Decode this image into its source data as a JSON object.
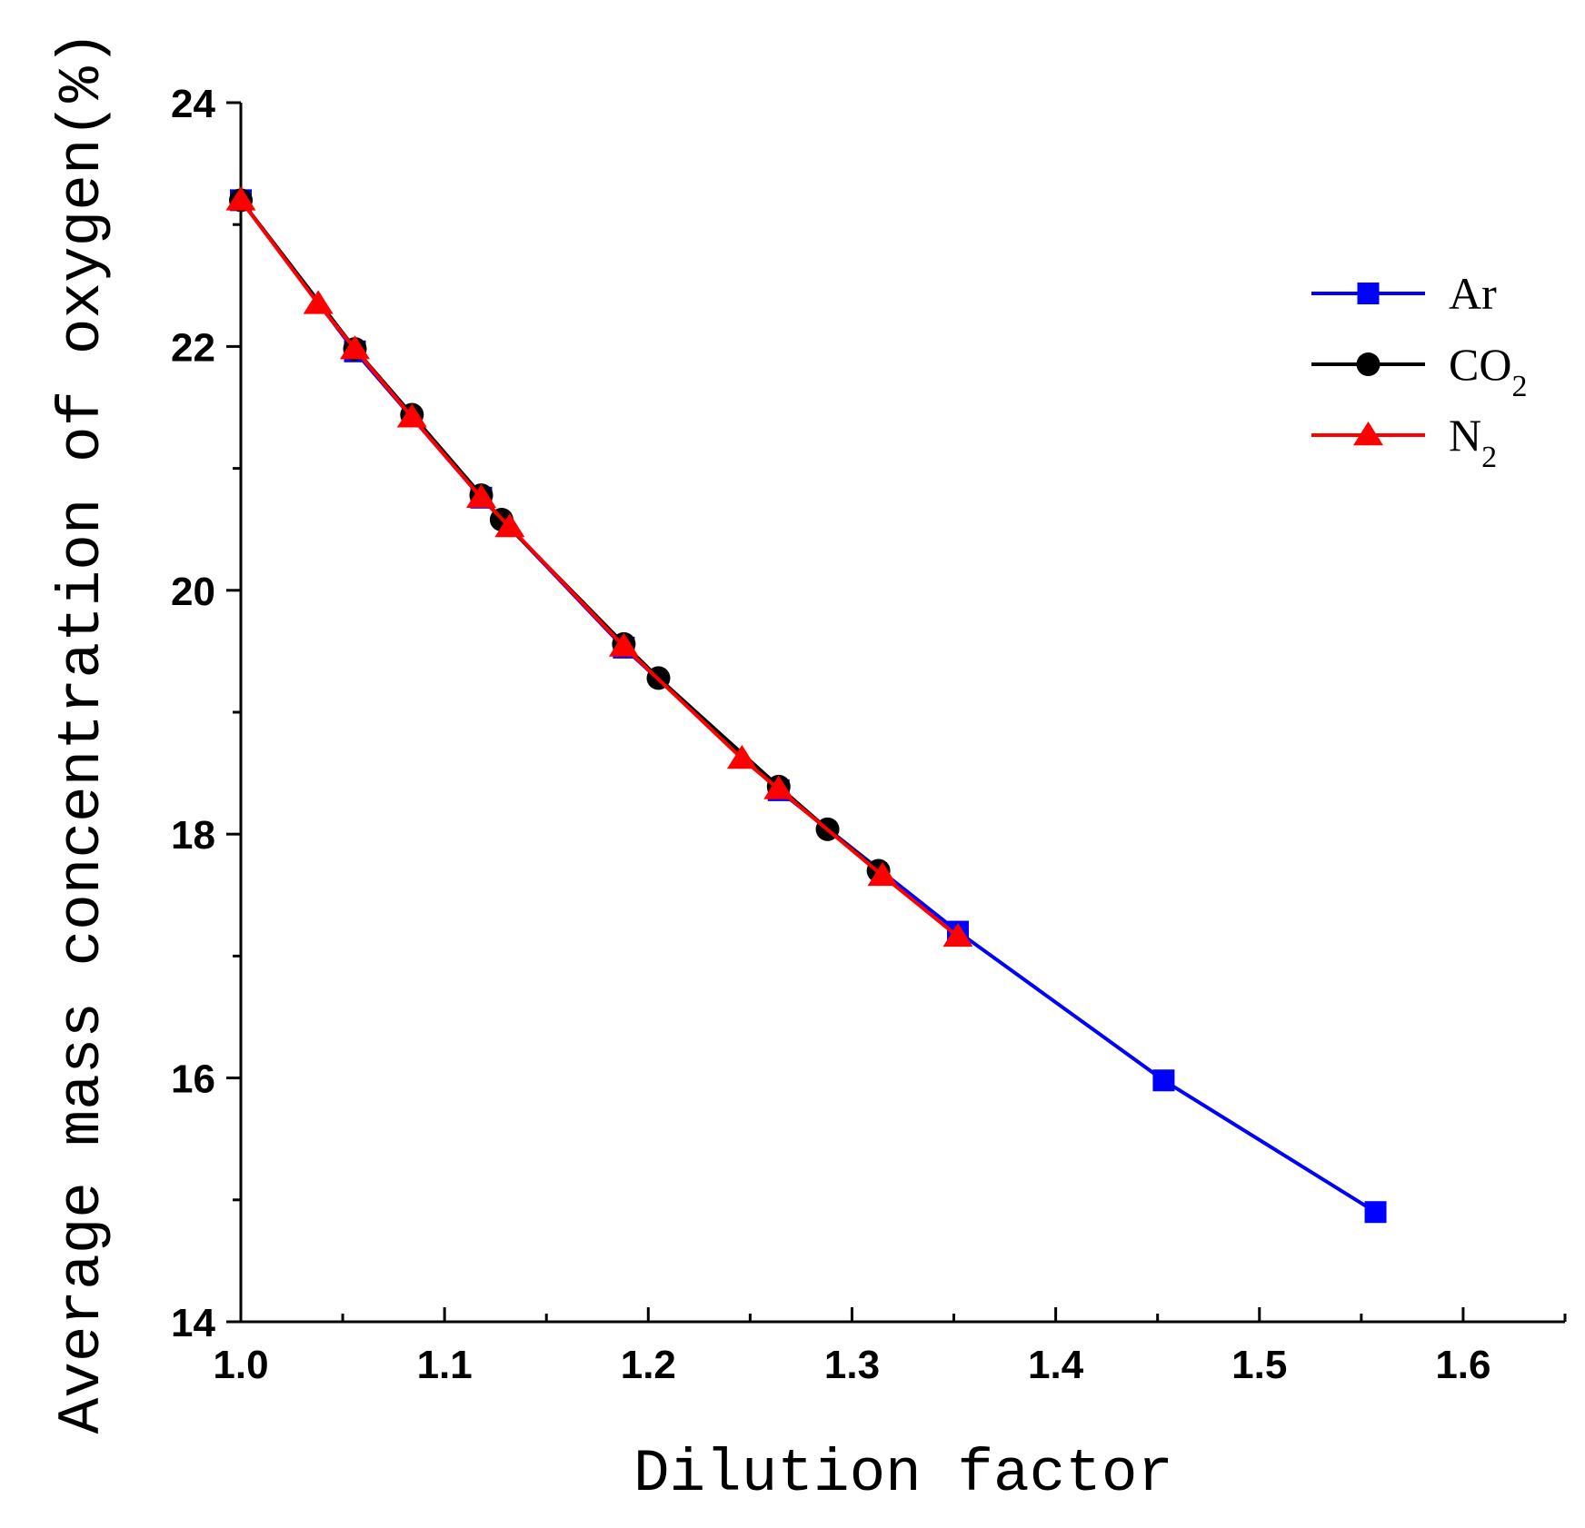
{
  "chart_data": {
    "type": "line",
    "title": "",
    "xlabel": "Dilution factor",
    "ylabel": "Average mass concentration of oxygen(%)",
    "xlim": [
      1.0,
      1.65
    ],
    "ylim": [
      14,
      24
    ],
    "xticks": [
      1.0,
      1.1,
      1.2,
      1.3,
      1.4,
      1.5,
      1.6
    ],
    "xtick_labels": [
      "1.0",
      "1.1",
      "1.2",
      "1.3",
      "1.4",
      "1.5",
      "1.6"
    ],
    "yticks": [
      14,
      16,
      18,
      20,
      22,
      24
    ],
    "ytick_labels": [
      "14",
      "16",
      "18",
      "20",
      "22",
      "24"
    ],
    "legend_position": "top-right",
    "grid": false,
    "series": [
      {
        "name": "Ar",
        "sub": "",
        "color": "#0000ff",
        "marker": "square",
        "x": [
          1.0,
          1.056,
          1.118,
          1.188,
          1.264,
          1.352,
          1.453,
          1.557
        ],
        "y": [
          23.2,
          21.96,
          20.76,
          19.53,
          18.36,
          17.2,
          15.98,
          14.9
        ]
      },
      {
        "name": "CO",
        "sub": "2",
        "color": "#000000",
        "marker": "circle",
        "x": [
          1.0,
          1.056,
          1.084,
          1.118,
          1.128,
          1.188,
          1.205,
          1.264,
          1.288,
          1.313
        ],
        "y": [
          23.2,
          21.98,
          21.44,
          20.78,
          20.58,
          19.56,
          19.28,
          18.39,
          18.04,
          17.7
        ]
      },
      {
        "name": "N",
        "sub": "2",
        "color": "#ff0000",
        "marker": "triangle",
        "x": [
          1.0,
          1.038,
          1.056,
          1.084,
          1.118,
          1.132,
          1.188,
          1.246,
          1.264,
          1.315,
          1.352
        ],
        "y": [
          23.2,
          22.35,
          21.98,
          21.42,
          20.76,
          20.52,
          19.54,
          18.62,
          18.37,
          17.66,
          17.16
        ]
      }
    ]
  }
}
